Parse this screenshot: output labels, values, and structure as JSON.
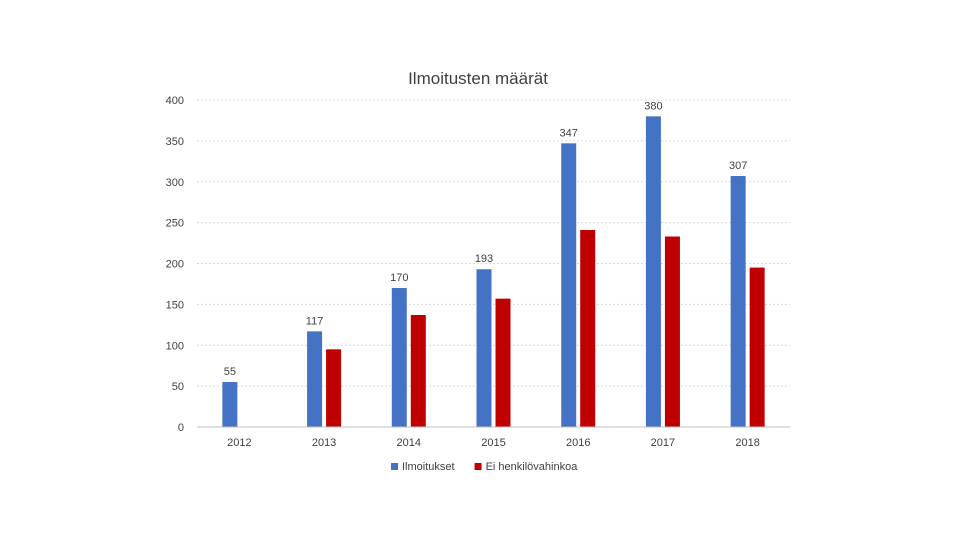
{
  "chart_data": {
    "type": "bar",
    "title": "Ilmoitusten määrät",
    "xlabel": "",
    "ylabel": "",
    "ylim": [
      0,
      400
    ],
    "yticks": [
      0,
      50,
      100,
      150,
      200,
      250,
      300,
      350,
      400
    ],
    "grid": true,
    "legend_position": "bottom",
    "categories": [
      "2012",
      "2013",
      "2014",
      "2015",
      "2016",
      "2017",
      "2018"
    ],
    "series": [
      {
        "name": "Ilmoitukset",
        "color": "#4472c4",
        "values": [
          55,
          117,
          170,
          193,
          347,
          380,
          307
        ],
        "data_labels": true
      },
      {
        "name": "Ei henkilövahinkoa",
        "color": "#c00000",
        "values": [
          null,
          95,
          137,
          157,
          241,
          233,
          195
        ],
        "data_labels": false
      }
    ]
  }
}
